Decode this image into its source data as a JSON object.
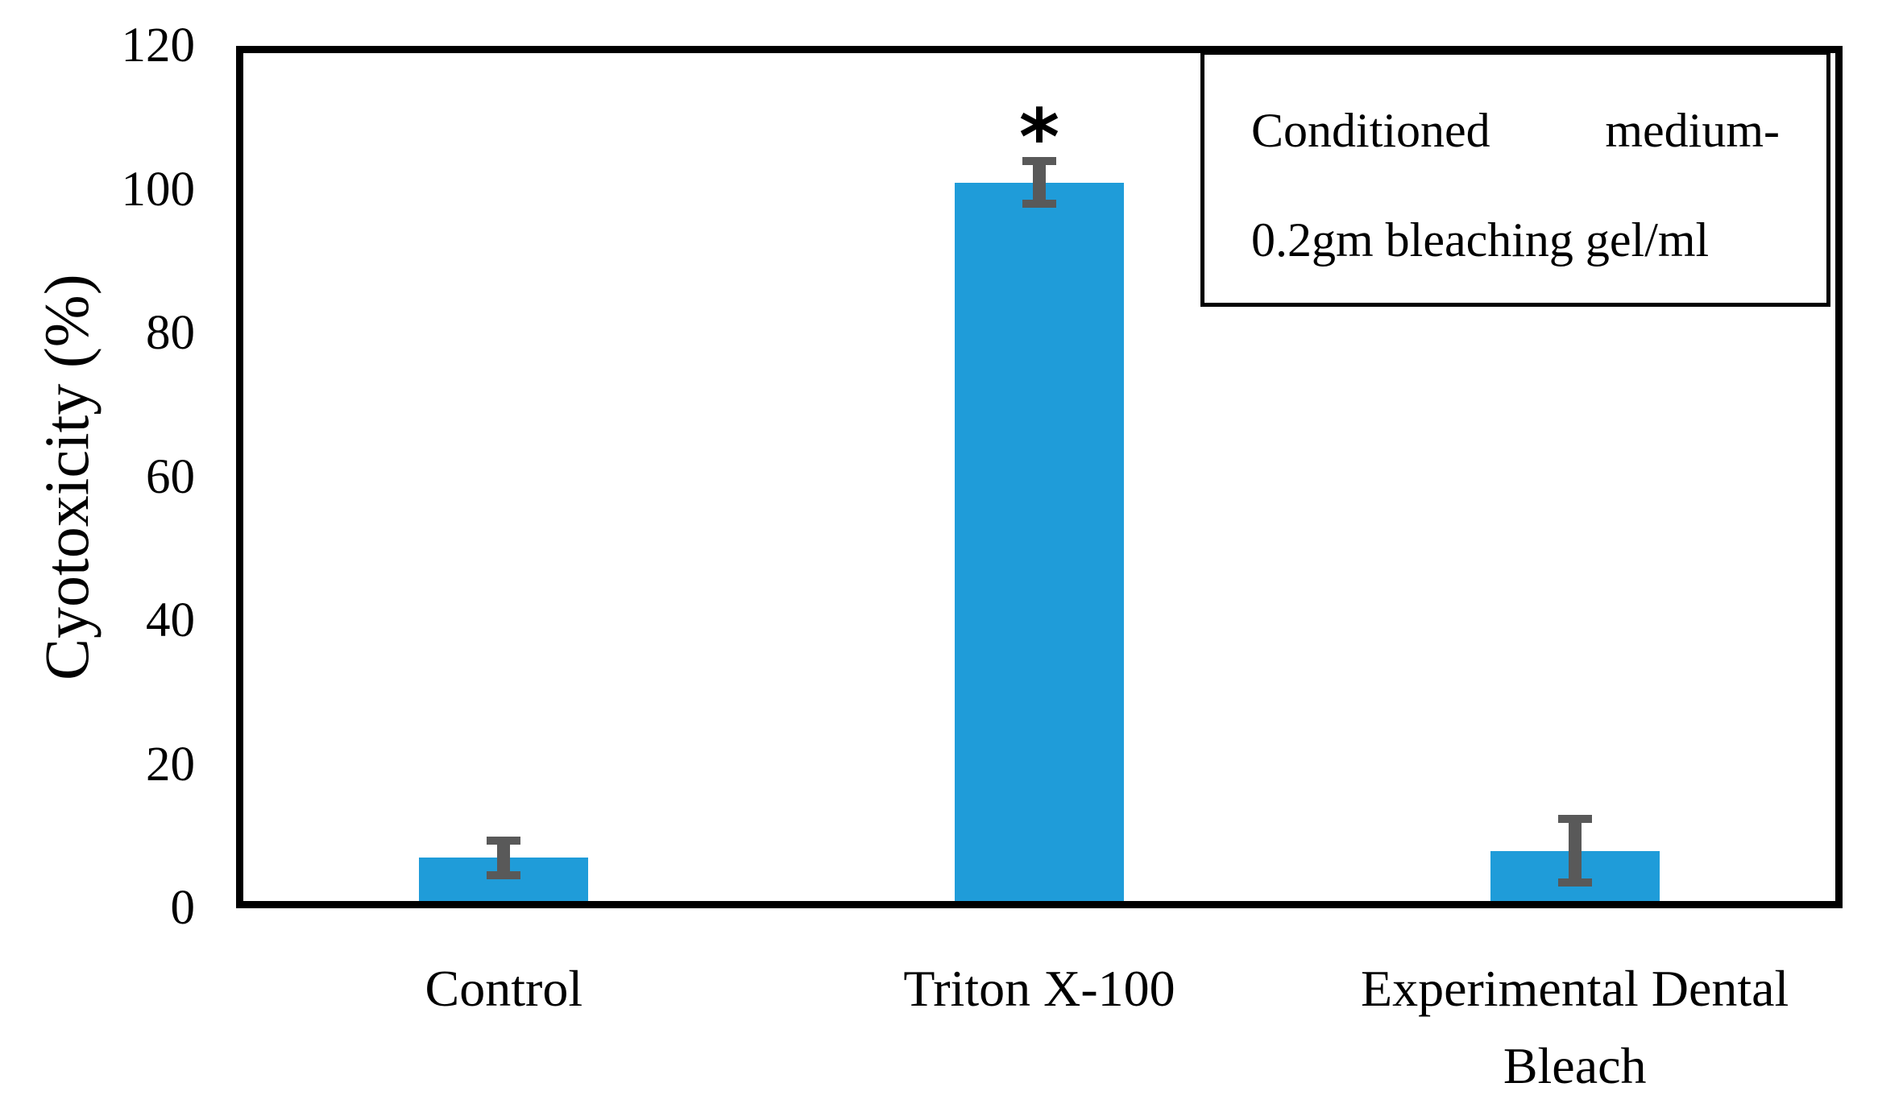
{
  "chart_data": {
    "type": "bar",
    "title": "",
    "categories": [
      "Control",
      "Triton X-100",
      "Experimental Dental\nBleach"
    ],
    "values": [
      6,
      100,
      7
    ],
    "errors": [
      3,
      3.5,
      5
    ],
    "ylabel": "Cyotoxicity (%)",
    "xlabel": "",
    "ylim": [
      0,
      120
    ],
    "yticks": [
      0,
      20,
      40,
      60,
      80,
      100,
      120
    ],
    "grid": false,
    "bar_color": "#1F9CD9",
    "error_color": "#595959",
    "axis_color": "#000000",
    "annotations": [
      {
        "text": "*",
        "category_index": 1
      }
    ],
    "legend_position": "top-right"
  },
  "legend": {
    "line1_left": "Conditioned",
    "line1_right": "medium-",
    "line2": "0.2gm bleaching gel/ml"
  }
}
